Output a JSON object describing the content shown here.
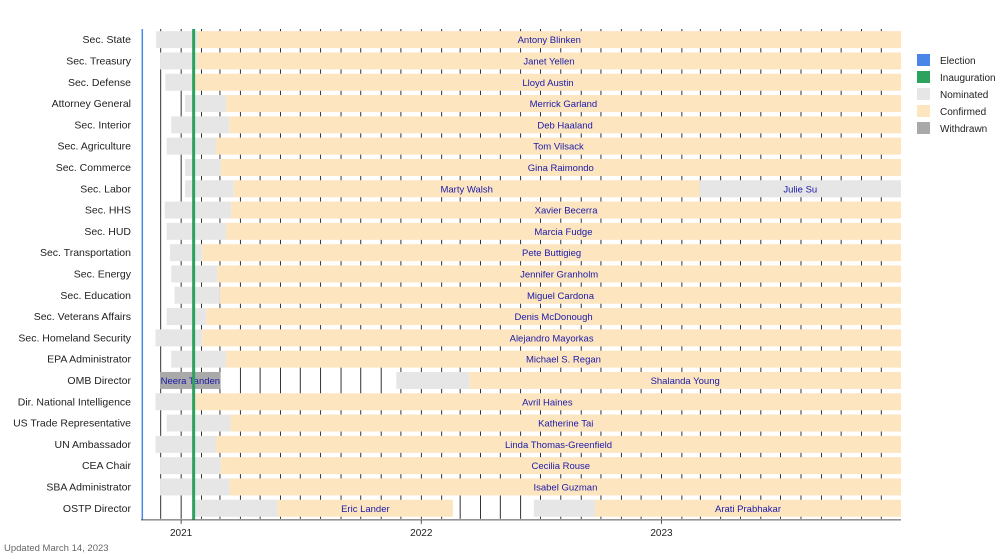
{
  "footer_text": "Updated March 14, 2023",
  "colors": {
    "election": "#4a86e8",
    "inauguration": "#2ca25f",
    "nominated": "#e6e6e6",
    "confirmed": "#fde5c0",
    "withdrawn": "#a9a9a9",
    "label": "#1a1aa8"
  },
  "chart_data": {
    "type": "timeline",
    "x_axis": {
      "range": [
        "2020-11-01",
        "2023-12-31"
      ],
      "tick_labels": [
        "2021",
        "2022",
        "2023"
      ],
      "tick_dates": [
        "2021-01-01",
        "2022-01-01",
        "2023-01-01"
      ],
      "minor_grid": "monthly"
    },
    "markers": [
      {
        "legend": "Election",
        "date": "2020-11-03"
      },
      {
        "legend": "Inauguration",
        "date": "2021-01-20"
      }
    ],
    "legend": {
      "placement": "right",
      "items": [
        {
          "label": "Election",
          "color": "#4a86e8"
        },
        {
          "label": "Inauguration",
          "color": "#2ca25f"
        },
        {
          "label": "Nominated",
          "color": "#e6e6e6"
        },
        {
          "label": "Confirmed",
          "color": "#fde5c0"
        },
        {
          "label": "Withdrawn",
          "color": "#a9a9a9"
        }
      ]
    },
    "rows": [
      {
        "position": "Sec. State",
        "segments": [
          {
            "status": "nominated",
            "start": "2020-11-24",
            "end": "2021-01-26"
          },
          {
            "status": "confirmed",
            "start": "2021-01-26",
            "end": "2023-12-31",
            "label": "Antony Blinken"
          }
        ]
      },
      {
        "position": "Sec. Treasury",
        "segments": [
          {
            "status": "nominated",
            "start": "2020-11-30",
            "end": "2021-01-25"
          },
          {
            "status": "confirmed",
            "start": "2021-01-25",
            "end": "2023-12-31",
            "label": "Janet Yellen"
          }
        ]
      },
      {
        "position": "Sec. Defense",
        "segments": [
          {
            "status": "nominated",
            "start": "2020-12-08",
            "end": "2021-01-22"
          },
          {
            "status": "confirmed",
            "start": "2021-01-22",
            "end": "2023-12-31",
            "label": "Lloyd Austin"
          }
        ]
      },
      {
        "position": "Attorney General",
        "segments": [
          {
            "status": "nominated",
            "start": "2021-01-07",
            "end": "2021-03-10"
          },
          {
            "status": "confirmed",
            "start": "2021-03-10",
            "end": "2023-12-31",
            "label": "Merrick Garland"
          }
        ]
      },
      {
        "position": "Sec. Interior",
        "segments": [
          {
            "status": "nominated",
            "start": "2020-12-17",
            "end": "2021-03-15"
          },
          {
            "status": "confirmed",
            "start": "2021-03-15",
            "end": "2023-12-31",
            "label": "Deb Haaland"
          }
        ]
      },
      {
        "position": "Sec. Agriculture",
        "segments": [
          {
            "status": "nominated",
            "start": "2020-12-10",
            "end": "2021-02-23"
          },
          {
            "status": "confirmed",
            "start": "2021-02-23",
            "end": "2023-12-31",
            "label": "Tom Vilsack"
          }
        ]
      },
      {
        "position": "Sec. Commerce",
        "segments": [
          {
            "status": "nominated",
            "start": "2021-01-07",
            "end": "2021-03-02"
          },
          {
            "status": "confirmed",
            "start": "2021-03-02",
            "end": "2023-12-31",
            "label": "Gina Raimondo"
          }
        ]
      },
      {
        "position": "Sec. Labor",
        "segments": [
          {
            "status": "nominated",
            "start": "2021-01-07",
            "end": "2021-03-22"
          },
          {
            "status": "confirmed",
            "start": "2021-03-22",
            "end": "2023-02-28",
            "label": "Marty Walsh"
          },
          {
            "status": "nominated",
            "start": "2023-02-28",
            "end": "2023-12-31",
            "label": "Julie Su"
          }
        ]
      },
      {
        "position": "Sec. HHS",
        "segments": [
          {
            "status": "nominated",
            "start": "2020-12-07",
            "end": "2021-03-18"
          },
          {
            "status": "confirmed",
            "start": "2021-03-18",
            "end": "2023-12-31",
            "label": "Xavier Becerra"
          }
        ]
      },
      {
        "position": "Sec. HUD",
        "segments": [
          {
            "status": "nominated",
            "start": "2020-12-10",
            "end": "2021-03-10"
          },
          {
            "status": "confirmed",
            "start": "2021-03-10",
            "end": "2023-12-31",
            "label": "Marcia Fudge"
          }
        ]
      },
      {
        "position": "Sec. Transportation",
        "segments": [
          {
            "status": "nominated",
            "start": "2020-12-15",
            "end": "2021-02-02"
          },
          {
            "status": "confirmed",
            "start": "2021-02-02",
            "end": "2023-12-31",
            "label": "Pete Buttigieg"
          }
        ]
      },
      {
        "position": "Sec. Energy",
        "segments": [
          {
            "status": "nominated",
            "start": "2020-12-17",
            "end": "2021-02-25"
          },
          {
            "status": "confirmed",
            "start": "2021-02-25",
            "end": "2023-12-31",
            "label": "Jennifer Granholm"
          }
        ]
      },
      {
        "position": "Sec. Education",
        "segments": [
          {
            "status": "nominated",
            "start": "2020-12-22",
            "end": "2021-03-01"
          },
          {
            "status": "confirmed",
            "start": "2021-03-01",
            "end": "2023-12-31",
            "label": "Miguel Cardona"
          }
        ]
      },
      {
        "position": "Sec. Veterans Affairs",
        "segments": [
          {
            "status": "nominated",
            "start": "2020-12-10",
            "end": "2021-02-08"
          },
          {
            "status": "confirmed",
            "start": "2021-02-08",
            "end": "2023-12-31",
            "label": "Denis McDonough"
          }
        ]
      },
      {
        "position": "Sec. Homeland Security",
        "segments": [
          {
            "status": "nominated",
            "start": "2020-11-23",
            "end": "2021-02-02"
          },
          {
            "status": "confirmed",
            "start": "2021-02-02",
            "end": "2023-12-31",
            "label": "Alejandro Mayorkas"
          }
        ]
      },
      {
        "position": "EPA Administrator",
        "segments": [
          {
            "status": "nominated",
            "start": "2020-12-17",
            "end": "2021-03-10"
          },
          {
            "status": "confirmed",
            "start": "2021-03-10",
            "end": "2023-12-31",
            "label": "Michael S. Regan"
          }
        ]
      },
      {
        "position": "OMB Director",
        "segments": [
          {
            "status": "withdrawn",
            "start": "2020-11-30",
            "end": "2021-03-02",
            "label": "Neera Tanden"
          },
          {
            "status": "nominated",
            "start": "2021-11-24",
            "end": "2022-03-15"
          },
          {
            "status": "confirmed",
            "start": "2022-03-15",
            "end": "2023-12-31",
            "label": "Shalanda Young"
          }
        ]
      },
      {
        "position": "Dir. National Intelligence",
        "segments": [
          {
            "status": "nominated",
            "start": "2020-11-23",
            "end": "2021-01-20"
          },
          {
            "status": "confirmed",
            "start": "2021-01-20",
            "end": "2023-12-31",
            "label": "Avril Haines"
          }
        ]
      },
      {
        "position": "US Trade Representative",
        "segments": [
          {
            "status": "nominated",
            "start": "2020-12-10",
            "end": "2021-03-17"
          },
          {
            "status": "confirmed",
            "start": "2021-03-17",
            "end": "2023-12-31",
            "label": "Katherine Tai"
          }
        ]
      },
      {
        "position": "UN Ambassador",
        "segments": [
          {
            "status": "nominated",
            "start": "2020-11-23",
            "end": "2021-02-23"
          },
          {
            "status": "confirmed",
            "start": "2021-02-23",
            "end": "2023-12-31",
            "label": "Linda Thomas-Greenfield"
          }
        ]
      },
      {
        "position": "CEA Chair",
        "segments": [
          {
            "status": "nominated",
            "start": "2020-11-30",
            "end": "2021-03-02"
          },
          {
            "status": "confirmed",
            "start": "2021-03-02",
            "end": "2023-12-31",
            "label": "Cecilia Rouse"
          }
        ]
      },
      {
        "position": "SBA Administrator",
        "segments": [
          {
            "status": "nominated",
            "start": "2020-11-30",
            "end": "2021-03-16"
          },
          {
            "status": "confirmed",
            "start": "2021-03-16",
            "end": "2023-12-31",
            "label": "Isabel Guzman"
          }
        ]
      },
      {
        "position": "OSTP Director",
        "segments": [
          {
            "status": "nominated",
            "start": "2021-01-20",
            "end": "2021-05-28"
          },
          {
            "status": "confirmed",
            "start": "2021-05-28",
            "end": "2022-02-18",
            "label": "Eric Lander"
          },
          {
            "status": "nominated",
            "start": "2022-06-21",
            "end": "2022-09-22"
          },
          {
            "status": "confirmed",
            "start": "2022-09-22",
            "end": "2023-12-31",
            "label": "Arati Prabhakar"
          }
        ]
      }
    ]
  }
}
